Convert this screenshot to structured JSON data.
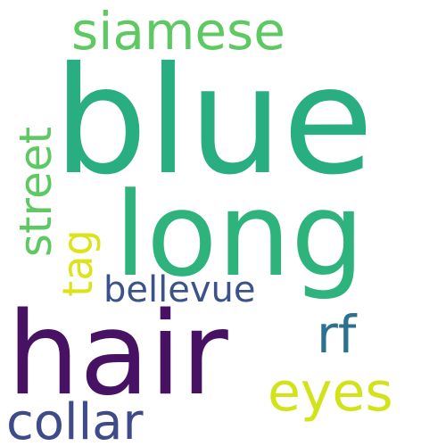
{
  "cloud": {
    "words": [
      {
        "text": "blue",
        "color": "#28ae80"
      },
      {
        "text": "long",
        "color": "#2eb37c"
      },
      {
        "text": "hair",
        "color": "#471164"
      },
      {
        "text": "siamese",
        "color": "#5ec962"
      },
      {
        "text": "street",
        "color": "#5ec962"
      },
      {
        "text": "tag",
        "color": "#dde318"
      },
      {
        "text": "bellevue",
        "color": "#3b528b"
      },
      {
        "text": "rf",
        "color": "#2c728e"
      },
      {
        "text": "eyes",
        "color": "#d2e21b"
      },
      {
        "text": "collar",
        "color": "#3e4a89"
      }
    ]
  }
}
